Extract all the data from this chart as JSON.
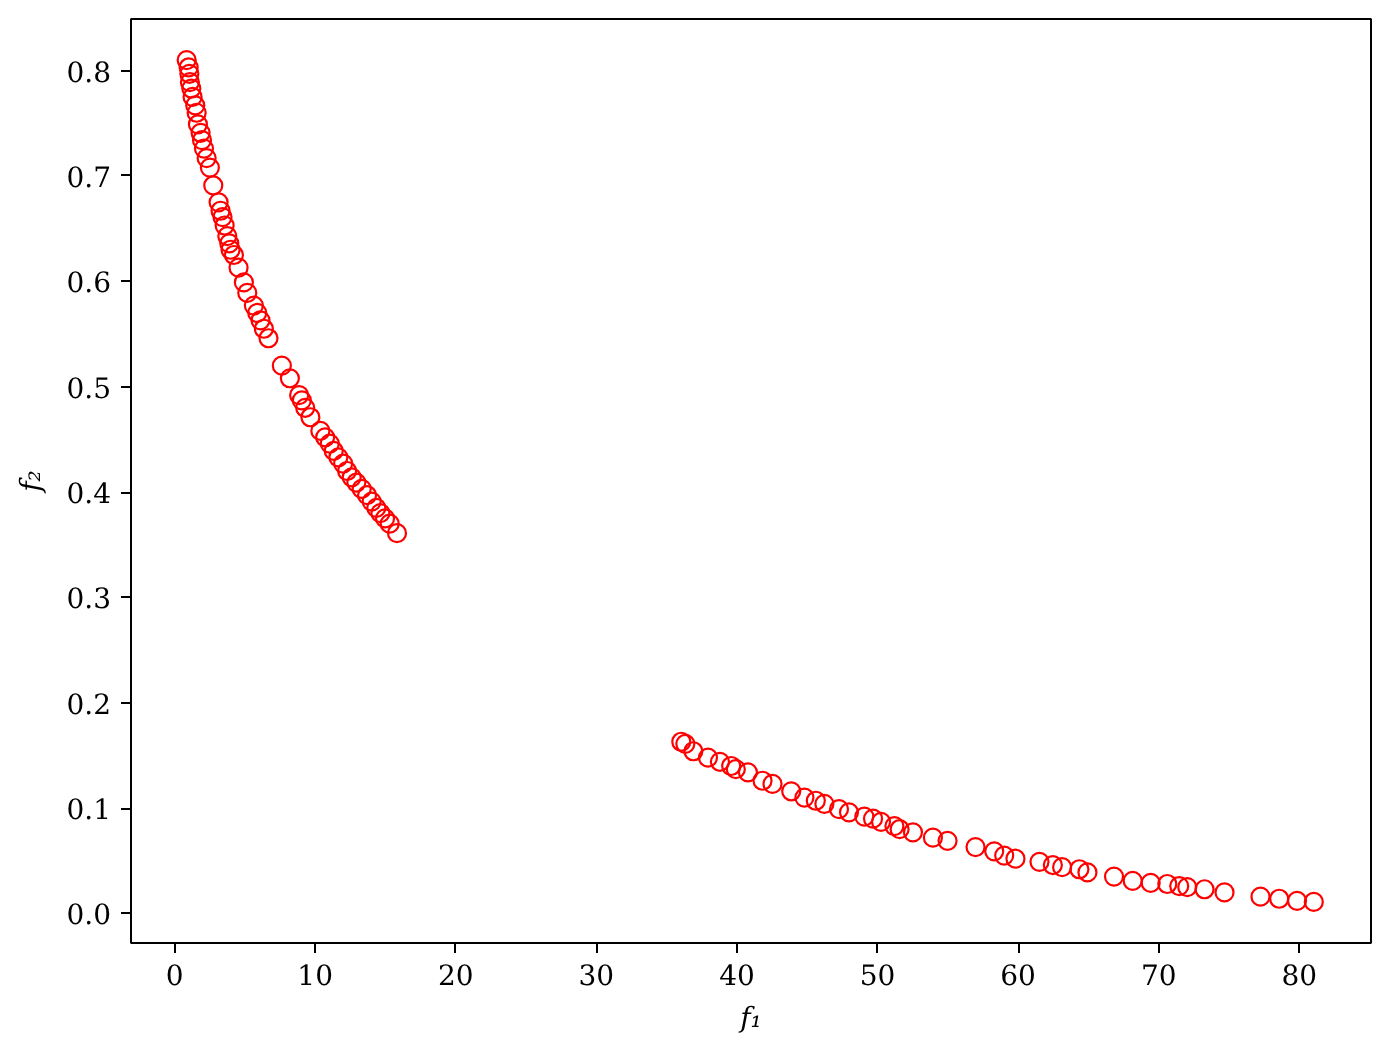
{
  "chart_data": {
    "type": "scatter",
    "xlabel": "f₁",
    "ylabel": "f₂",
    "color": "#ff0000",
    "marker": "circle",
    "grid": false,
    "xlim": [
      -3.1,
      85.1
    ],
    "ylim": [
      -0.028,
      0.849
    ],
    "xticks": [
      0,
      10,
      20,
      30,
      40,
      50,
      60,
      70,
      80
    ],
    "yticks": [
      {
        "value": 0,
        "label": "0.0"
      },
      0.1,
      0.2,
      0.3,
      0.4,
      0.5,
      0.6,
      0.7,
      0.8
    ],
    "x": [
      0.86,
      1.0,
      1.05,
      1.09,
      1.19,
      1.28,
      1.47,
      1.57,
      1.66,
      1.85,
      1.95,
      2.09,
      2.28,
      2.51,
      2.75,
      3.13,
      3.27,
      3.41,
      3.56,
      3.75,
      3.89,
      3.98,
      4.22,
      4.55,
      4.93,
      5.17,
      5.64,
      5.88,
      6.11,
      6.35,
      6.68,
      7.63,
      8.2,
      8.86,
      9.05,
      9.29,
      9.66,
      10.37,
      10.71,
      11.04,
      11.32,
      11.65,
      11.99,
      12.27,
      12.6,
      12.93,
      13.31,
      13.69,
      14.02,
      14.35,
      14.64,
      14.97,
      15.3,
      15.82,
      36.04,
      36.33,
      36.9,
      37.94,
      38.79,
      39.59,
      39.92,
      40.78,
      41.82,
      42.53,
      43.86,
      44.8,
      45.61,
      46.22,
      47.26,
      47.97,
      49.06,
      49.68,
      50.25,
      51.2,
      51.57,
      52.52,
      53.94,
      54.98,
      56.97,
      58.3,
      59.01,
      59.81,
      61.52,
      62.47,
      63.13,
      64.36,
      64.93,
      66.82,
      68.15,
      69.43,
      70.61,
      71.46,
      72.03,
      73.26,
      74.68,
      77.24,
      78.57,
      79.84,
      81.03
    ],
    "values": [
      0.81,
      0.803,
      0.797,
      0.789,
      0.783,
      0.775,
      0.767,
      0.76,
      0.749,
      0.741,
      0.734,
      0.726,
      0.717,
      0.708,
      0.691,
      0.675,
      0.667,
      0.661,
      0.653,
      0.643,
      0.636,
      0.63,
      0.625,
      0.613,
      0.599,
      0.589,
      0.577,
      0.57,
      0.563,
      0.555,
      0.546,
      0.52,
      0.508,
      0.492,
      0.487,
      0.48,
      0.471,
      0.458,
      0.452,
      0.446,
      0.439,
      0.433,
      0.427,
      0.42,
      0.414,
      0.409,
      0.403,
      0.397,
      0.391,
      0.385,
      0.38,
      0.375,
      0.37,
      0.361,
      0.163,
      0.161,
      0.154,
      0.148,
      0.144,
      0.14,
      0.137,
      0.134,
      0.126,
      0.123,
      0.116,
      0.11,
      0.107,
      0.104,
      0.099,
      0.096,
      0.092,
      0.09,
      0.087,
      0.083,
      0.08,
      0.077,
      0.072,
      0.069,
      0.063,
      0.059,
      0.055,
      0.052,
      0.049,
      0.046,
      0.044,
      0.042,
      0.039,
      0.035,
      0.031,
      0.029,
      0.028,
      0.026,
      0.025,
      0.023,
      0.02,
      0.016,
      0.014,
      0.012,
      0.011
    ]
  }
}
